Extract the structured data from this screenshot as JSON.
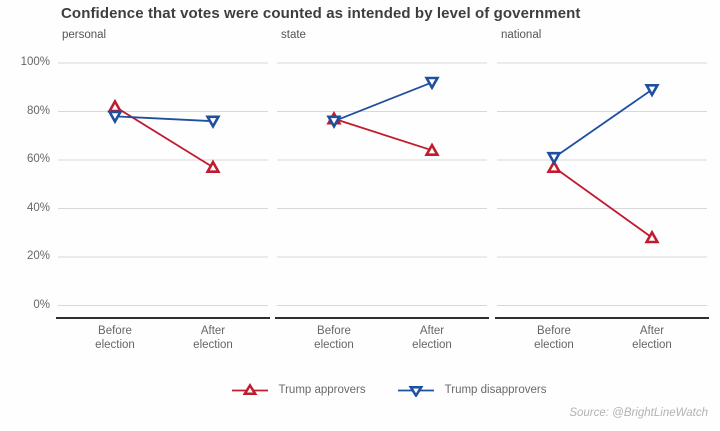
{
  "title": "Confidence that votes were counted as intended by level of government",
  "source": "Source: @BrightLineWatch",
  "colors": {
    "approvers": "#c01b2f",
    "disapprovers": "#1f4f9f",
    "gridline": "#d8d8d8",
    "axis_line": "#2f2f2f",
    "title_text": "#3e3e3e",
    "tick_text": "#666666"
  },
  "legend": [
    {
      "label": "Trump approvers",
      "color": "#c01b2f",
      "marker": "triangle-up"
    },
    {
      "label": "Trump disapprovers",
      "color": "#1f4f9f",
      "marker": "triangle-down"
    }
  ],
  "chart_data": {
    "type": "line",
    "title": "Confidence that votes were counted as intended by level of government",
    "x_categories": [
      "Before election",
      "After election"
    ],
    "ylim": [
      0,
      100
    ],
    "ytick_values": [
      100,
      80,
      60,
      40,
      20,
      0
    ],
    "ytick_labels": [
      "100%",
      "80%",
      "60%",
      "40%",
      "20%",
      "0%"
    ],
    "grid": true,
    "legend_position": "bottom",
    "panels": [
      {
        "label": "personal",
        "series": [
          {
            "name": "Trump approvers",
            "marker": "triangle-up",
            "values": [
              82,
              57
            ]
          },
          {
            "name": "Trump disapprovers",
            "marker": "triangle-down",
            "values": [
              78,
              76
            ]
          }
        ]
      },
      {
        "label": "state",
        "series": [
          {
            "name": "Trump approvers",
            "marker": "triangle-up",
            "values": [
              77,
              64
            ]
          },
          {
            "name": "Trump disapprovers",
            "marker": "triangle-down",
            "values": [
              76,
              92
            ]
          }
        ]
      },
      {
        "label": "national",
        "series": [
          {
            "name": "Trump approvers",
            "marker": "triangle-up",
            "values": [
              57,
              28
            ]
          },
          {
            "name": "Trump disapprovers",
            "marker": "triangle-down",
            "values": [
              61,
              89
            ]
          }
        ]
      }
    ]
  }
}
